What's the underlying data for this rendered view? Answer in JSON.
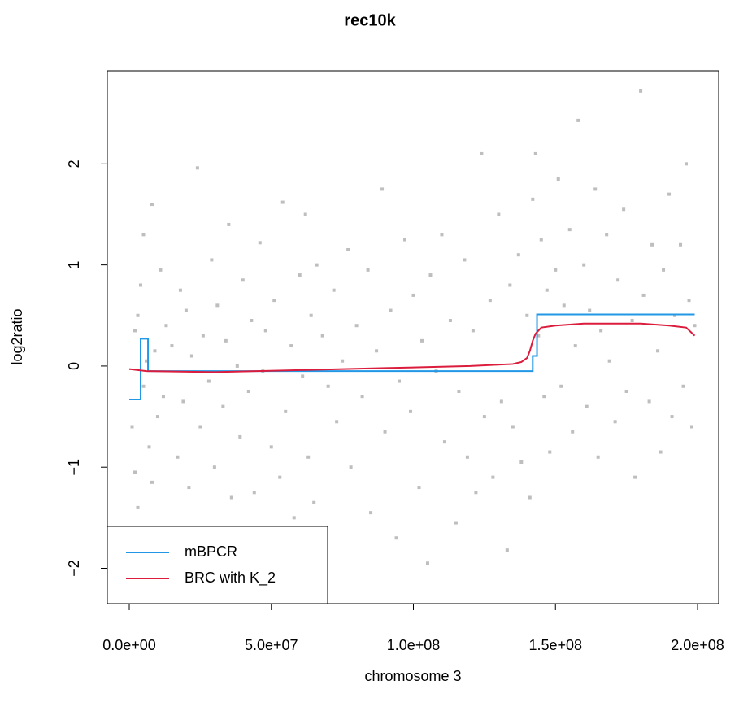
{
  "chart_data": {
    "type": "scatter",
    "title": "rec10k",
    "xlabel": "chromosome 3",
    "ylabel": "log2ratio",
    "xlim": [
      -7730000.0,
      207440000.0
    ],
    "ylim": [
      -2.35,
      2.92
    ],
    "xticks": [
      {
        "value": 0,
        "label": "0.0e+00"
      },
      {
        "value": 50000000.0,
        "label": "5.0e+07"
      },
      {
        "value": 100000000.0,
        "label": "1.0e+08"
      },
      {
        "value": 150000000.0,
        "label": "1.5e+08"
      },
      {
        "value": 200000000.0,
        "label": "2.0e+08"
      }
    ],
    "yticks": [
      {
        "value": -2,
        "label": "−2"
      },
      {
        "value": -1,
        "label": "−1"
      },
      0,
      1,
      2
    ],
    "legend": "bottom-left",
    "points": {
      "color": "#bebebe",
      "x": [
        1000000.0,
        2000000.0,
        2000000.0,
        3000000.0,
        3000000.0,
        4000000.0,
        5000000.0,
        5000000.0,
        6000000.0,
        7000000.0,
        8000000.0,
        8000000.0,
        9000000.0,
        10000000.0,
        11000000.0,
        12000000.0,
        13000000.0,
        14000000.0,
        15000000.0,
        17000000.0,
        18000000.0,
        19000000.0,
        20000000.0,
        21000000.0,
        22000000.0,
        24000000.0,
        25000000.0,
        26000000.0,
        28000000.0,
        29000000.0,
        30000000.0,
        31000000.0,
        33000000.0,
        34000000.0,
        35000000.0,
        36000000.0,
        38000000.0,
        39000000.0,
        40000000.0,
        42000000.0,
        43000000.0,
        44000000.0,
        46000000.0,
        47000000.0,
        48000000.0,
        50000000.0,
        51000000.0,
        53000000.0,
        54000000.0,
        55000000.0,
        57000000.0,
        58000000.0,
        60000000.0,
        61000000.0,
        62000000.0,
        63000000.0,
        64000000.0,
        65000000.0,
        66000000.0,
        67000000.0,
        68000000.0,
        70000000.0,
        72000000.0,
        73000000.0,
        75000000.0,
        77000000.0,
        78000000.0,
        80000000.0,
        82000000.0,
        84000000.0,
        85000000.0,
        87000000.0,
        89000000.0,
        90000000.0,
        92000000.0,
        94000000.0,
        95000000.0,
        97000000.0,
        99000000.0,
        100000000.0,
        102000000.0,
        103000000.0,
        105000000.0,
        106000000.0,
        108000000.0,
        110000000.0,
        111000000.0,
        113000000.0,
        115000000.0,
        116000000.0,
        118000000.0,
        119000000.0,
        121000000.0,
        122000000.0,
        124000000.0,
        125000000.0,
        127000000.0,
        128000000.0,
        130000000.0,
        131000000.0,
        133000000.0,
        134000000.0,
        135000000.0,
        137000000.0,
        138000000.0,
        140000000.0,
        141000000.0,
        142000000.0,
        143000000.0,
        144000000.0,
        145000000.0,
        146000000.0,
        147000000.0,
        148000000.0,
        150000000.0,
        151000000.0,
        152000000.0,
        153000000.0,
        155000000.0,
        156000000.0,
        157000000.0,
        158000000.0,
        160000000.0,
        161000000.0,
        162000000.0,
        164000000.0,
        165000000.0,
        166000000.0,
        168000000.0,
        169000000.0,
        171000000.0,
        172000000.0,
        174000000.0,
        175000000.0,
        177000000.0,
        178000000.0,
        180000000.0,
        181000000.0,
        183000000.0,
        184000000.0,
        186000000.0,
        187000000.0,
        188000000.0,
        190000000.0,
        191000000.0,
        192000000.0,
        194000000.0,
        195000000.0,
        196000000.0,
        197000000.0,
        198000000.0,
        199000000.0
      ],
      "y": [
        -0.6,
        0.35,
        -1.05,
        0.5,
        -1.4,
        0.8,
        1.3,
        -0.2,
        0.05,
        -0.8,
        1.6,
        -1.15,
        0.15,
        -0.5,
        0.95,
        -0.3,
        0.4,
        -1.7,
        0.2,
        -0.9,
        0.75,
        -0.35,
        0.55,
        -1.2,
        0.1,
        1.96,
        -0.6,
        0.3,
        -0.15,
        1.05,
        -1.0,
        0.6,
        -0.4,
        0.25,
        1.4,
        -1.3,
        0.0,
        -0.7,
        0.85,
        -0.25,
        0.45,
        -1.25,
        1.22,
        -0.05,
        0.35,
        -0.8,
        0.65,
        -1.1,
        1.62,
        -0.45,
        0.2,
        -1.5,
        0.9,
        -0.1,
        1.5,
        -0.9,
        0.5,
        -1.35,
        1.0,
        -1.67,
        0.3,
        -0.2,
        0.75,
        -0.55,
        0.05,
        1.15,
        -1.0,
        0.4,
        -0.3,
        0.95,
        -1.45,
        0.15,
        1.75,
        -0.65,
        0.55,
        -1.7,
        -0.15,
        1.25,
        -0.45,
        0.7,
        -1.2,
        0.25,
        -1.95,
        0.9,
        -0.05,
        1.3,
        -0.75,
        0.45,
        -1.55,
        -0.25,
        1.05,
        -0.9,
        0.35,
        -1.25,
        2.1,
        -0.5,
        0.65,
        -1.1,
        1.5,
        -0.35,
        -1.82,
        0.8,
        -0.6,
        1.1,
        -0.95,
        0.5,
        -1.3,
        1.65,
        2.1,
        0.3,
        1.25,
        -0.3,
        0.75,
        -0.85,
        0.95,
        1.85,
        -0.2,
        0.6,
        1.35,
        -0.65,
        0.2,
        2.43,
        1.0,
        -0.4,
        0.55,
        1.75,
        -0.9,
        0.35,
        1.3,
        0.05,
        -0.55,
        0.85,
        1.55,
        -0.25,
        0.45,
        -1.1,
        2.72,
        0.7,
        -0.35,
        1.2,
        0.15,
        -0.85,
        0.95,
        1.7,
        -0.5,
        0.5,
        1.2,
        -0.2,
        2.0,
        0.65,
        -0.6,
        0.4
      ]
    },
    "series": [
      {
        "name": "mBPCR",
        "color": "#2297e6",
        "x": [
          0,
          4000000.0,
          4000000.0,
          6600000.0,
          6600000.0,
          142000000.0,
          142000000.0,
          143500000.0,
          143500000.0,
          199000000.0
        ],
        "y": [
          -0.33,
          -0.33,
          0.27,
          0.27,
          -0.05,
          -0.05,
          0.1,
          0.1,
          0.51,
          0.51
        ]
      },
      {
        "name": "BRC with K_2",
        "color": "#dc1c3c",
        "x": [
          0,
          6000000.0,
          30000000.0,
          60000000.0,
          90000000.0,
          120000000.0,
          135000000.0,
          138000000.0,
          140000000.0,
          141000000.0,
          142000000.0,
          143000000.0,
          145000000.0,
          150000000.0,
          160000000.0,
          180000000.0,
          190000000.0,
          196000000.0,
          199000000.0
        ],
        "y": [
          -0.03,
          -0.05,
          -0.06,
          -0.04,
          -0.02,
          0,
          0.02,
          0.04,
          0.08,
          0.15,
          0.25,
          0.32,
          0.38,
          0.4,
          0.42,
          0.42,
          0.4,
          0.38,
          0.3
        ]
      }
    ]
  }
}
